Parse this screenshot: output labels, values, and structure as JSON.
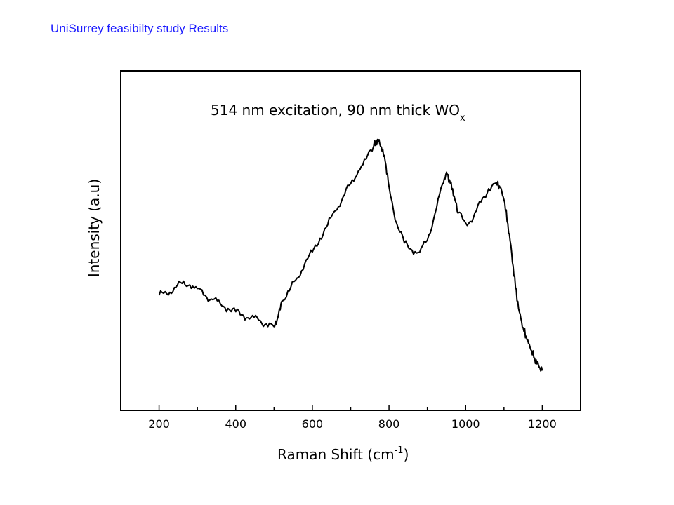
{
  "heading": "UniSurrey  feasibilty study Results",
  "chart_data": {
    "type": "line",
    "title_main": "514 nm excitation, 90 nm thick WO",
    "title_sub": "x",
    "xlabel_main": "Raman Shift (cm",
    "xlabel_sup": "-1",
    "xlabel_end": ")",
    "ylabel": "Intensity (a.u)",
    "xlim": [
      100,
      1300
    ],
    "ylim": [
      0,
      100
    ],
    "xticks": [
      200,
      400,
      600,
      800,
      1000,
      1200
    ],
    "xtick_labels": [
      "200",
      "400",
      "600",
      "800",
      "1000",
      "1200"
    ],
    "y_ticks_labeled": false,
    "grid": false,
    "line_color": "#000000",
    "series": [
      {
        "x": [
          200,
          220,
          240,
          260,
          280,
          300,
          320,
          340,
          360,
          380,
          400,
          420,
          440,
          460,
          480,
          500,
          510,
          520,
          540,
          560,
          580,
          600,
          620,
          640,
          660,
          680,
          700,
          720,
          740,
          760,
          770,
          780,
          790,
          800,
          820,
          840,
          860,
          880,
          900,
          920,
          940,
          950,
          960,
          970,
          980,
          1000,
          1020,
          1040,
          1060,
          1080,
          1090,
          1100,
          1110,
          1120,
          1130,
          1140,
          1150,
          1160,
          1170,
          1180,
          1190,
          1200
        ],
        "y": [
          32.6,
          33.2,
          35.7,
          37.4,
          36.8,
          35.3,
          32.6,
          30.8,
          29.1,
          27.2,
          25.9,
          24.4,
          23.6,
          22.4,
          20.9,
          19.8,
          23.5,
          30.1,
          34.4,
          39.6,
          45.4,
          50.2,
          55.8,
          61.3,
          67.1,
          72.6,
          78.0,
          83.2,
          88.0,
          93.4,
          96.1,
          93.0,
          87.2,
          76.8,
          61.9,
          53.9,
          51.0,
          50.1,
          55.0,
          65.9,
          78.0,
          82.7,
          78.2,
          73.0,
          66.1,
          62.0,
          64.1,
          70.6,
          76.0,
          78.4,
          76.5,
          71.5,
          61.8,
          49.8,
          35.8,
          25.8,
          19.4,
          14.4,
          10.5,
          7.0,
          4.0,
          1.9
        ]
      }
    ]
  }
}
